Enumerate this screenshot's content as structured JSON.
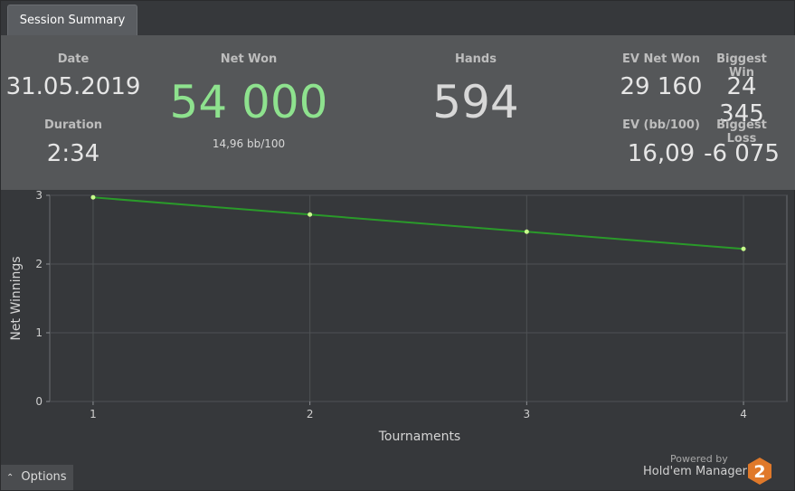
{
  "tab": {
    "label": "Session Summary"
  },
  "summary": {
    "date_label": "Date",
    "date_value": "31.05.2019",
    "duration_label": "Duration",
    "duration_value": "2:34",
    "net_won_label": "Net Won",
    "net_won_value": "54 000",
    "net_won_sub": "14,96 bb/100",
    "hands_label": "Hands",
    "hands_value": "594",
    "ev_net_won_label": "EV Net Won",
    "ev_net_won_value": "29 160",
    "biggest_win_label": "Biggest Win",
    "biggest_win_value": "24 345",
    "ev_bb_label": "EV (bb/100)",
    "ev_bb_value": "16,09",
    "biggest_loss_label": "Biggest Loss",
    "biggest_loss_value": "-6 075"
  },
  "colors": {
    "net_won": "#8ee28e",
    "line": "#2a9a2a",
    "point": "#c8ff8c",
    "logo": "#e0792a"
  },
  "chart_data": {
    "type": "line",
    "x": [
      1,
      2,
      3,
      4
    ],
    "series": [
      {
        "values": [
          2.97,
          2.72,
          2.47,
          2.22
        ]
      }
    ],
    "xlabel": "Tournaments",
    "ylabel": "Net Winnings",
    "xticks": [
      "1",
      "2",
      "3",
      "4"
    ],
    "yticks": [
      "0",
      "1",
      "2",
      "3"
    ],
    "xlim": [
      0.8,
      4.2
    ],
    "ylim": [
      0,
      3
    ],
    "grid": true
  },
  "footer": {
    "options_label": "Options",
    "powered_by": "Powered by",
    "brand": "Hold'em Manager",
    "logo_text": "2"
  }
}
